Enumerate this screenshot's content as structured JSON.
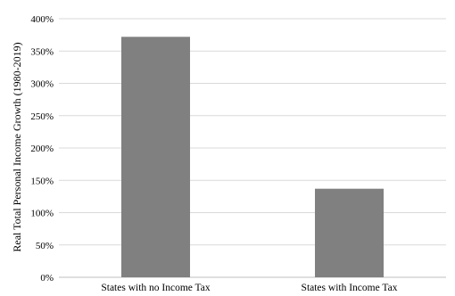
{
  "chart_data": {
    "type": "bar",
    "title": "",
    "xlabel": "",
    "ylabel": "Real Total Personal Income Growth (1980-2019)",
    "categories": [
      "States with no Income Tax",
      "States with Income Tax"
    ],
    "values": [
      372,
      137
    ],
    "ylim": [
      0,
      400
    ],
    "y_ticks": [
      "0%",
      "50%",
      "100%",
      "150%",
      "200%",
      "250%",
      "300%",
      "350%",
      "400%"
    ],
    "grid": true,
    "legend": "none",
    "colors": {
      "bar": "#808080",
      "grid": "#d9d9d9",
      "axis": "#bfbfbf",
      "text": "#000000"
    }
  }
}
